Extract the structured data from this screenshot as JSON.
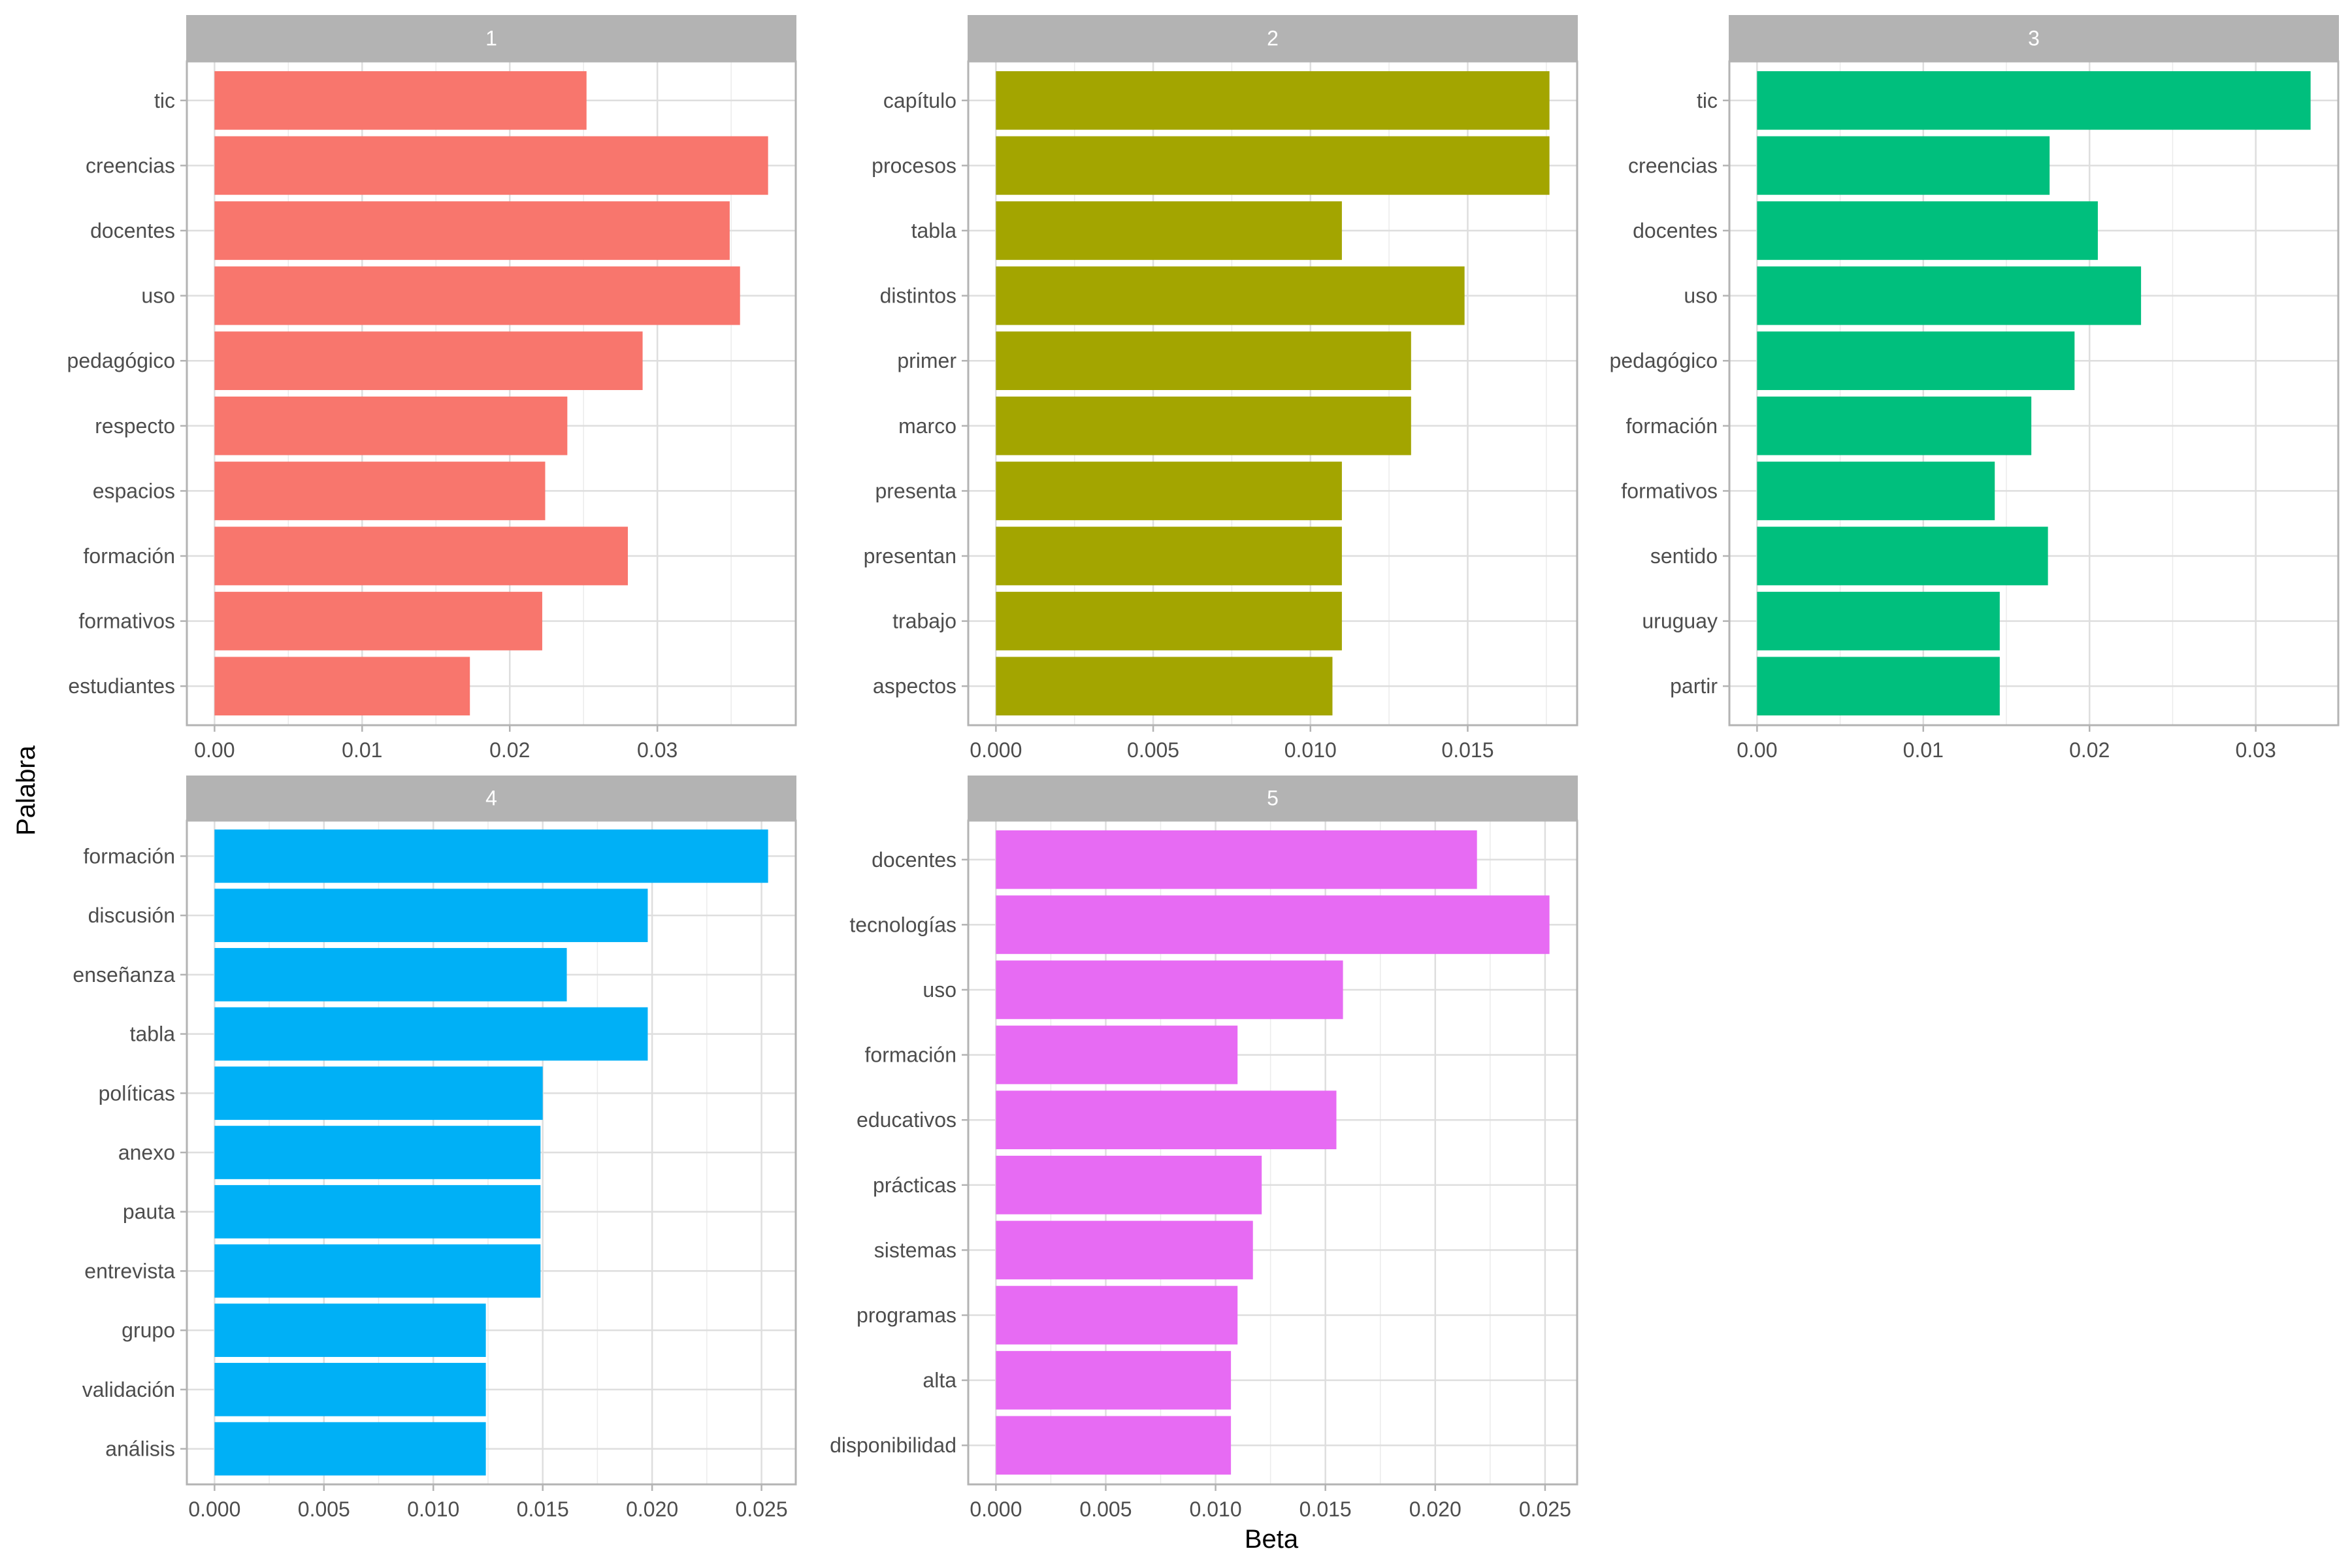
{
  "chart_data": {
    "type": "bar",
    "orientation": "horizontal",
    "layout": "facet_wrap",
    "xlabel": "Beta",
    "ylabel": "Palabra",
    "grid": true,
    "legend": "none",
    "panels": [
      {
        "title": "1",
        "color": "#F8766D",
        "categories": [
          "tic",
          "creencias",
          "docentes",
          "uso",
          "pedagógico",
          "respecto",
          "espacios",
          "formación",
          "formativos",
          "estudiantes"
        ],
        "values": [
          0.0252,
          0.0375,
          0.0349,
          0.0356,
          0.029,
          0.0239,
          0.0224,
          0.028,
          0.0222,
          0.0173
        ],
        "xticks": [
          0,
          0.01,
          0.02,
          0.03
        ],
        "xtick_labels": [
          "0.00",
          "0.01",
          "0.02",
          "0.03"
        ]
      },
      {
        "title": "2",
        "color": "#A3A500",
        "categories": [
          "capítulo",
          "procesos",
          "tabla",
          "distintos",
          "primer",
          "marco",
          "presenta",
          "presentan",
          "trabajo",
          "aspectos"
        ],
        "values": [
          0.0176,
          0.0176,
          0.011,
          0.0149,
          0.0132,
          0.0132,
          0.011,
          0.011,
          0.011,
          0.0107
        ],
        "xticks": [
          0,
          0.005,
          0.01,
          0.015
        ],
        "xtick_labels": [
          "0.000",
          "0.005",
          "0.010",
          "0.015"
        ]
      },
      {
        "title": "3",
        "color": "#00BF7D",
        "categories": [
          "tic",
          "creencias",
          "docentes",
          "uso",
          "pedagógico",
          "formación",
          "formativos",
          "sentido",
          "uruguay",
          "partir"
        ],
        "values": [
          0.0333,
          0.0176,
          0.0205,
          0.0231,
          0.0191,
          0.0165,
          0.0143,
          0.0175,
          0.0146,
          0.0146
        ],
        "xticks": [
          0,
          0.01,
          0.02,
          0.03
        ],
        "xtick_labels": [
          "0.00",
          "0.01",
          "0.02",
          "0.03"
        ]
      },
      {
        "title": "4",
        "color": "#00B0F6",
        "categories": [
          "formación",
          "discusión",
          "enseñanza",
          "tabla",
          "políticas",
          "anexo",
          "pauta",
          "entrevista",
          "grupo",
          "validación",
          "análisis"
        ],
        "values": [
          0.0253,
          0.0198,
          0.0161,
          0.0198,
          0.015,
          0.0149,
          0.0149,
          0.0149,
          0.0124,
          0.0124,
          0.0124
        ],
        "xticks": [
          0,
          0.005,
          0.01,
          0.015,
          0.02,
          0.025
        ],
        "xtick_labels": [
          "0.000",
          "0.005",
          "0.010",
          "0.015",
          "0.020",
          "0.025"
        ]
      },
      {
        "title": "5",
        "color": "#E76BF3",
        "categories": [
          "docentes",
          "tecnologías",
          "uso",
          "formación",
          "educativos",
          "prácticas",
          "sistemas",
          "programas",
          "alta",
          "disponibilidad"
        ],
        "values": [
          0.0219,
          0.0252,
          0.0158,
          0.011,
          0.0155,
          0.0121,
          0.0117,
          0.011,
          0.0107,
          0.0107
        ],
        "xticks": [
          0,
          0.005,
          0.01,
          0.015,
          0.02,
          0.025
        ],
        "xtick_labels": [
          "0.000",
          "0.005",
          "0.010",
          "0.015",
          "0.020",
          "0.025"
        ]
      }
    ]
  }
}
